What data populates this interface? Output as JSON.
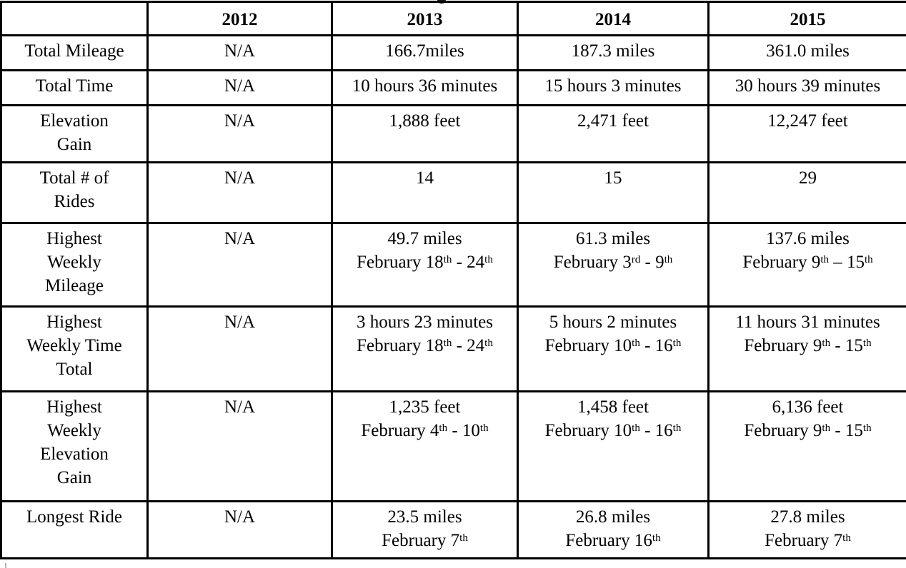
{
  "colors": {
    "table_border": "#000000",
    "text": "#000000",
    "background": "#ffffff"
  },
  "table": {
    "column_headers": [
      "",
      "2012",
      "2013",
      "2014",
      "2015"
    ],
    "rows": [
      {
        "label_lines": [
          "Total Mileage"
        ],
        "cells": [
          [
            "N/A"
          ],
          [
            "166.7miles"
          ],
          [
            "187.3 miles"
          ],
          [
            "361.0 miles"
          ]
        ]
      },
      {
        "label_lines": [
          "Total Time"
        ],
        "cells": [
          [
            "N/A"
          ],
          [
            "10 hours 36 minutes"
          ],
          [
            "15 hours 3 minutes"
          ],
          [
            "30 hours 39 minutes"
          ]
        ]
      },
      {
        "label_lines": [
          "Elevation",
          "Gain"
        ],
        "cells": [
          [
            "N/A"
          ],
          [
            "1,888 feet"
          ],
          [
            "2,471 feet"
          ],
          [
            "12,247 feet"
          ]
        ]
      },
      {
        "label_lines": [
          "Total # of",
          "Rides"
        ],
        "cells": [
          [
            "N/A"
          ],
          [
            "14"
          ],
          [
            "15"
          ],
          [
            "29"
          ]
        ]
      },
      {
        "label_lines": [
          "Highest",
          "Weekly",
          "Mileage"
        ],
        "cells": [
          [
            "N/A"
          ],
          [
            "49.7 miles",
            "February 18^{th} - 24^{th}"
          ],
          [
            "61.3 miles",
            "February 3^{rd} - 9^{th}"
          ],
          [
            "137.6 miles",
            "February 9^{th} – 15^{th}"
          ]
        ]
      },
      {
        "label_lines": [
          "Highest",
          "Weekly Time",
          "Total"
        ],
        "cells": [
          [
            "N/A"
          ],
          [
            "3 hours 23 minutes",
            "February 18^{th} - 24^{th}"
          ],
          [
            "5 hours 2 minutes",
            "February 10^{th} - 16^{th}"
          ],
          [
            "11 hours 31 minutes",
            "February 9^{th} - 15^{th}"
          ]
        ]
      },
      {
        "label_lines": [
          "Highest",
          "Weekly",
          "Elevation",
          "Gain"
        ],
        "cells": [
          [
            "N/A"
          ],
          [
            "1,235 feet",
            "February 4^{th} - 10^{th}"
          ],
          [
            "1,458 feet",
            "February 10^{th} - 16^{th}"
          ],
          [
            "6,136 feet",
            "February 9^{th} - 15^{th}"
          ]
        ]
      },
      {
        "label_lines": [
          "Longest Ride"
        ],
        "cells": [
          [
            "N/A"
          ],
          [
            "23.5 miles",
            "February 7^{th}"
          ],
          [
            "26.8 miles",
            "February 16^{th}"
          ],
          [
            "27.8 miles",
            "February 7^{th}"
          ]
        ]
      }
    ]
  },
  "artifacts": {
    "top_cropped_text": "partial descender of cropped-off title above table",
    "bottom_left_sliver": "faint border sliver of following content below table"
  }
}
